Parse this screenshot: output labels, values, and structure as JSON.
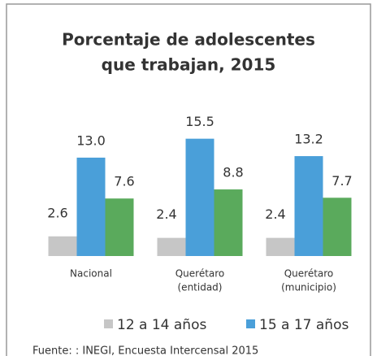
{
  "chart_data": {
    "type": "bar",
    "title": [
      "Porcentaje de adolescentes",
      "que trabajan, 2015"
    ],
    "categories": [
      [
        "Nacional"
      ],
      [
        "Querétaro",
        "(entidad)"
      ],
      [
        "Querétaro",
        "(municipio)"
      ]
    ],
    "series": [
      {
        "name": "12 a 14 años",
        "color": "#c6c6c6",
        "values": [
          2.6,
          2.4,
          2.4
        ],
        "value_labels": [
          "2.6",
          "2.4",
          "2.4"
        ]
      },
      {
        "name": "15 a 17 años",
        "color": "#4a9fd9",
        "values": [
          13.0,
          15.5,
          13.2
        ],
        "value_labels": [
          "13.0",
          "15.5",
          "13.2"
        ]
      },
      {
        "color": "#5aaa5c",
        "values": [
          7.6,
          8.8,
          7.7
        ],
        "value_labels": [
          "7.6",
          "8.8",
          "7.7"
        ]
      }
    ],
    "ylim": [
      0,
      16
    ],
    "source": "Fuente: : INEGI, Encuesta Intercensal 2015"
  }
}
